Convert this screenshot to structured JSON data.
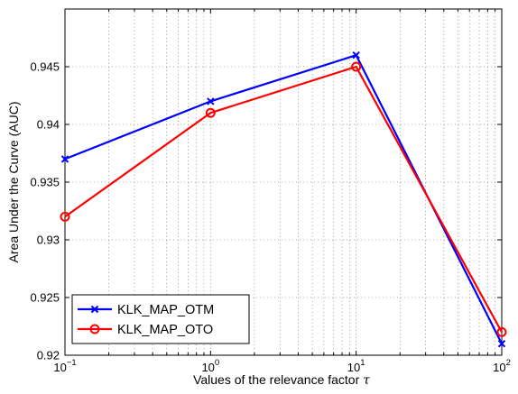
{
  "chart_data": {
    "type": "line",
    "x_scale": "log",
    "x": [
      0.1,
      1,
      10,
      100
    ],
    "xticks": [
      {
        "value": 0.1,
        "base": "10",
        "exp": "−1"
      },
      {
        "value": 1,
        "base": "10",
        "exp": "0"
      },
      {
        "value": 10,
        "base": "10",
        "exp": "1"
      },
      {
        "value": 100,
        "base": "10",
        "exp": "2"
      }
    ],
    "xlim": [
      0.1,
      100
    ],
    "ylim": [
      0.92,
      0.95
    ],
    "yticks": [
      0.92,
      0.925,
      0.93,
      0.935,
      0.94,
      0.945
    ],
    "ytick_labels": [
      "0.92",
      "0.925",
      "0.93",
      "0.935",
      "0.94",
      "0.945"
    ],
    "xlabel": "Values of the relevance factor",
    "xlabel_symbol": "τ",
    "ylabel": "Area Under the Curve (AUC)",
    "grid": true,
    "legend_position": "bottom-left",
    "series": [
      {
        "name": "KLK_MAP_OTM",
        "color": "#0000ff",
        "marker": "x",
        "values": [
          0.937,
          0.942,
          0.946,
          0.921
        ]
      },
      {
        "name": "KLK_MAP_OTO",
        "color": "#ff0000",
        "marker": "o",
        "values": [
          0.932,
          0.941,
          0.945,
          0.922
        ]
      }
    ]
  }
}
